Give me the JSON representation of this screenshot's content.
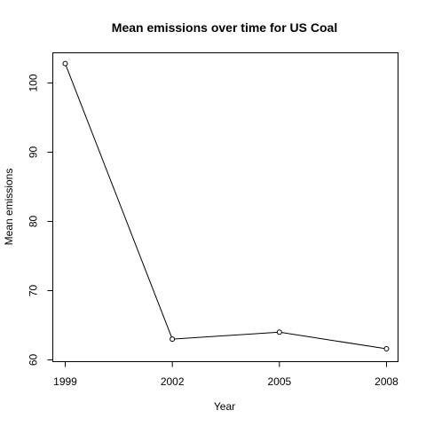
{
  "chart_data": {
    "type": "line",
    "title": "Mean emissions over time for US Coal",
    "xlabel": "Year",
    "ylabel": "Mean emissions",
    "x": [
      1999,
      2002,
      2005,
      2008
    ],
    "series": [
      {
        "values": [
          102.8,
          63.0,
          64.0,
          61.6
        ]
      }
    ],
    "x_ticks": [
      "1999",
      "2002",
      "2005",
      "2008"
    ],
    "y_ticks": [
      "60",
      "70",
      "80",
      "90",
      "100"
    ],
    "xlim": [
      1999,
      2008
    ],
    "ylim": [
      60,
      100
    ],
    "grid": false,
    "markers": "open-circle"
  }
}
